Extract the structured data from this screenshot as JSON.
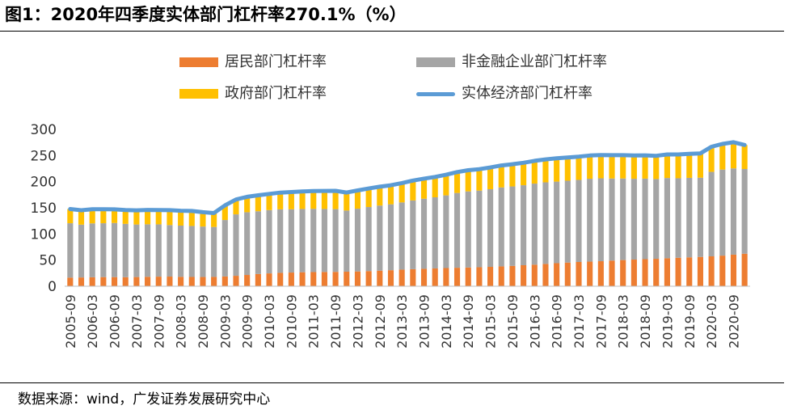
{
  "title": "图1：2020年四季度实体部门杠杆率270.1%（%）",
  "source": "数据来源：wind，广发证券发展研究中心",
  "chart_data": {
    "type": "bar",
    "stacked": true,
    "title": "2020年四季度实体部门杠杆率270.1%（%）",
    "xlabel": "",
    "ylabel": "%",
    "ylim": [
      0,
      300
    ],
    "yticks": [
      0,
      50,
      100,
      150,
      200,
      250,
      300
    ],
    "grid": false,
    "legend_position": "top",
    "categories": [
      "2005-09",
      "2005-12",
      "2006-03",
      "2006-06",
      "2006-09",
      "2006-12",
      "2007-03",
      "2007-06",
      "2007-09",
      "2007-12",
      "2008-03",
      "2008-06",
      "2008-09",
      "2008-12",
      "2009-03",
      "2009-06",
      "2009-09",
      "2009-12",
      "2010-03",
      "2010-06",
      "2010-09",
      "2010-12",
      "2011-03",
      "2011-06",
      "2011-09",
      "2011-12",
      "2012-03",
      "2012-06",
      "2012-09",
      "2012-12",
      "2013-03",
      "2013-06",
      "2013-09",
      "2013-12",
      "2014-03",
      "2014-06",
      "2014-09",
      "2014-12",
      "2015-03",
      "2015-06",
      "2015-09",
      "2015-12",
      "2016-03",
      "2016-06",
      "2016-09",
      "2016-12",
      "2017-03",
      "2017-06",
      "2017-09",
      "2017-12",
      "2018-03",
      "2018-06",
      "2018-09",
      "2018-12",
      "2019-03",
      "2019-06",
      "2019-09",
      "2019-12",
      "2020-03",
      "2020-06",
      "2020-09",
      "2020-12"
    ],
    "tick_labels": [
      "2005-09",
      "2006-03",
      "2006-09",
      "2007-03",
      "2007-09",
      "2008-03",
      "2008-09",
      "2009-03",
      "2009-09",
      "2010-03",
      "2010-09",
      "2011-03",
      "2011-09",
      "2012-03",
      "2012-09",
      "2013-03",
      "2013-09",
      "2014-03",
      "2014-09",
      "2015-03",
      "2015-09",
      "2016-03",
      "2016-09",
      "2017-03",
      "2017-09",
      "2018-03",
      "2018-09",
      "2019-03",
      "2019-09",
      "2020-03",
      "2020-09"
    ],
    "series": [
      {
        "name": "居民部门杠杆率",
        "color": "#ED7D31",
        "kind": "bar",
        "values": [
          16.5,
          16.8,
          17.2,
          17.5,
          17.5,
          17.3,
          17.6,
          18.1,
          18.4,
          18.5,
          18.0,
          17.8,
          17.7,
          17.9,
          18.7,
          20.0,
          21.6,
          23.4,
          24.6,
          25.6,
          26.2,
          26.8,
          27.1,
          27.3,
          27.5,
          27.8,
          28.3,
          29.0,
          29.8,
          30.7,
          31.8,
          32.6,
          33.4,
          34.1,
          34.8,
          35.4,
          35.9,
          36.4,
          37.1,
          38.0,
          38.9,
          40.2,
          41.3,
          42.7,
          44.1,
          45.3,
          46.4,
          47.1,
          47.9,
          49.1,
          50.1,
          51.0,
          51.8,
          52.5,
          53.5,
          54.5,
          55.3,
          56.1,
          57.2,
          58.6,
          60.4,
          62.2
        ]
      },
      {
        "name": "非金融企业部门杠杆率",
        "color": "#A5A5A5",
        "kind": "bar",
        "values": [
          104.0,
          101.0,
          103.0,
          103.0,
          103.5,
          102.0,
          100.5,
          100.4,
          100.0,
          98.5,
          98.0,
          97.5,
          96.5,
          95.5,
          108.0,
          117.5,
          120.0,
          120.0,
          121.0,
          121.5,
          121.0,
          121.0,
          121.0,
          120.5,
          120.0,
          117.0,
          120.0,
          122.5,
          124.5,
          126.0,
          128.5,
          131.5,
          134.0,
          136.0,
          139.0,
          143.0,
          145.5,
          146.5,
          148.5,
          151.0,
          152.0,
          153.0,
          155.0,
          156.0,
          156.0,
          156.5,
          157.0,
          158.5,
          158.5,
          157.0,
          156.0,
          154.5,
          154.0,
          152.5,
          153.5,
          152.0,
          152.0,
          151.5,
          161.5,
          164.5,
          165.0,
          162.0
        ]
      },
      {
        "name": "政府部门杠杆率",
        "color": "#FFC000",
        "kind": "bar",
        "values": [
          27.2,
          27.5,
          27.0,
          26.8,
          26.1,
          26.3,
          27.1,
          27.5,
          27.3,
          28.5,
          28.5,
          28.7,
          27.5,
          26.5,
          28.0,
          28.5,
          29.5,
          30.5,
          31.0,
          32.0,
          33.0,
          33.5,
          34.0,
          34.5,
          35.0,
          34.5,
          35.0,
          35.5,
          36.0,
          36.5,
          37.0,
          38.0,
          38.5,
          39.0,
          39.5,
          40.0,
          40.5,
          41.0,
          41.5,
          42.0,
          42.5,
          43.0,
          43.5,
          44.0,
          44.5,
          44.5,
          44.5,
          44.5,
          44.5,
          44.5,
          44.5,
          44.5,
          44.5,
          44.5,
          45.0,
          45.5,
          46.0,
          46.5,
          48.0,
          49.0,
          50.0,
          45.9
        ]
      },
      {
        "name": "实体经济部门杠杆率",
        "color": "#5B9BD5",
        "kind": "line",
        "values": [
          147.7,
          145.3,
          147.2,
          147.3,
          147.1,
          145.6,
          145.2,
          146.0,
          145.7,
          145.5,
          144.5,
          144.0,
          141.7,
          139.9,
          154.7,
          166.0,
          171.1,
          173.9,
          176.6,
          179.1,
          180.2,
          181.3,
          182.1,
          182.3,
          182.5,
          179.3,
          183.3,
          187.0,
          190.3,
          193.2,
          197.3,
          202.1,
          205.9,
          209.1,
          213.3,
          218.4,
          221.9,
          223.9,
          227.1,
          231.0,
          233.4,
          236.2,
          239.8,
          242.7,
          244.6,
          246.3,
          247.9,
          250.1,
          250.9,
          250.6,
          250.6,
          250.0,
          250.3,
          249.5,
          252.0,
          252.0,
          253.3,
          254.1,
          266.7,
          272.1,
          275.4,
          270.1
        ]
      }
    ]
  }
}
